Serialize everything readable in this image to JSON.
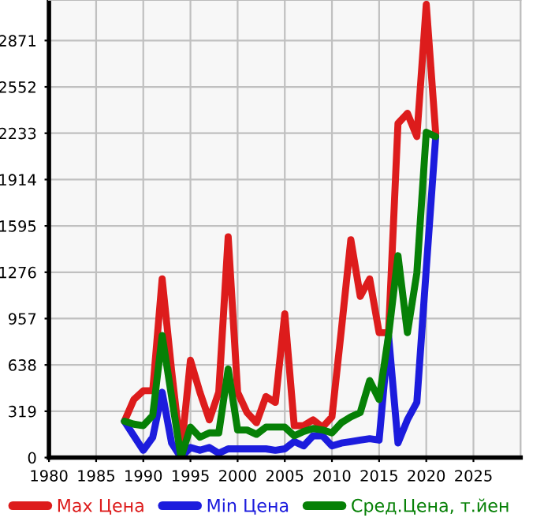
{
  "chart_data": {
    "type": "line",
    "x": [
      1988,
      1989,
      1990,
      1991,
      1992,
      1993,
      1994,
      1995,
      1996,
      1997,
      1998,
      1999,
      2000,
      2001,
      2002,
      2003,
      2004,
      2005,
      2006,
      2007,
      2008,
      2009,
      2010,
      2011,
      2012,
      2013,
      2014,
      2015,
      2016,
      2017,
      2018,
      2019,
      2020,
      2021
    ],
    "series": [
      {
        "name": "Max Цена",
        "color": "#dd1c1c",
        "values": [
          250,
          400,
          460,
          460,
          1230,
          600,
          30,
          670,
          450,
          260,
          450,
          1520,
          450,
          310,
          240,
          420,
          380,
          990,
          220,
          220,
          260,
          210,
          280,
          880,
          1500,
          1110,
          1230,
          860,
          860,
          2300,
          2370,
          2210,
          3120,
          2230
        ]
      },
      {
        "name": "Min Цена",
        "color": "#1c1cdd",
        "values": [
          250,
          150,
          50,
          140,
          450,
          100,
          0,
          70,
          50,
          70,
          30,
          60,
          60,
          60,
          60,
          60,
          50,
          60,
          110,
          80,
          150,
          150,
          80,
          100,
          110,
          120,
          130,
          120,
          840,
          100,
          260,
          380,
          1300,
          2210
        ]
      },
      {
        "name": "Сред.Цена, т.йен",
        "color": "#068006",
        "values": [
          250,
          230,
          220,
          290,
          840,
          420,
          0,
          210,
          140,
          170,
          170,
          610,
          190,
          190,
          160,
          210,
          210,
          210,
          150,
          180,
          200,
          190,
          170,
          240,
          280,
          310,
          530,
          400,
          840,
          1390,
          860,
          1270,
          2240,
          2210
        ]
      }
    ],
    "xlim": [
      1980,
      2030
    ],
    "xticks": [
      1980,
      1985,
      1990,
      1995,
      2000,
      2005,
      2010,
      2015,
      2020,
      2025
    ],
    "ylim": [
      0,
      3150
    ],
    "yticks": [
      0,
      319,
      638,
      957,
      1276,
      1595,
      1914,
      2233,
      2552,
      2871
    ],
    "grid": true,
    "legend": "bottom",
    "marker": "none",
    "line_style": "solid"
  }
}
